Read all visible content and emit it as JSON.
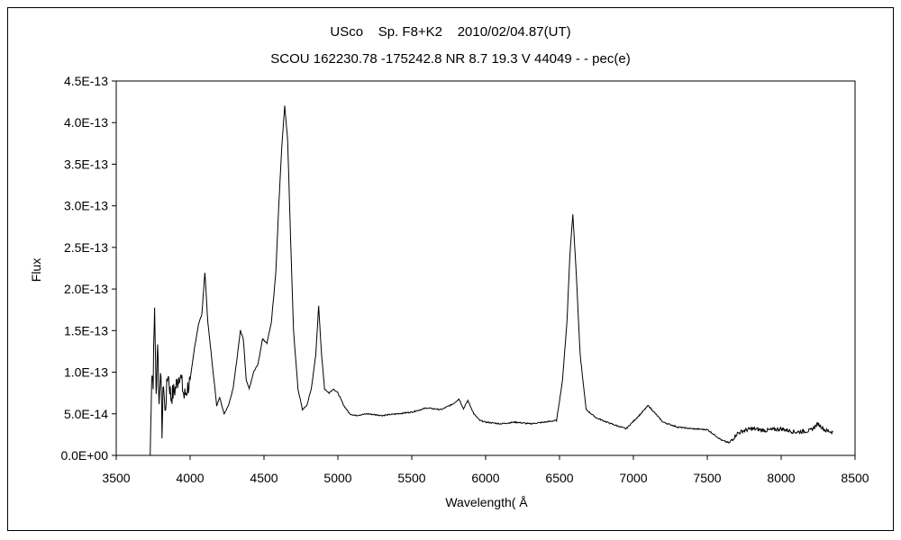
{
  "chart_data": {
    "type": "line",
    "title": "USco    Sp. F8+K2    2010/02/04.87(UT)",
    "subtitle": "SCOU 162230.78 -175242.8 NR 8.7 19.3 V 44049 - - pec(e)",
    "xlabel": "Wavelength( Å",
    "ylabel": "Flux",
    "xlim": [
      3500,
      8500
    ],
    "ylim": [
      0,
      4.5e-13
    ],
    "x_ticks": [
      "3500",
      "4000",
      "4500",
      "5000",
      "5500",
      "6000",
      "6500",
      "7000",
      "7500",
      "8000",
      "8500"
    ],
    "y_ticks": [
      "0.0E+00",
      "5.0E-14",
      "1.0E-13",
      "1.5E-13",
      "2.0E-13",
      "2.5E-13",
      "3.0E-13",
      "3.5E-13",
      "4.0E-13",
      "4.5E-13"
    ],
    "grid": false,
    "legend": "none",
    "series": [
      {
        "x": [
          3730,
          3740,
          3750,
          3760,
          3770,
          3780,
          3790,
          3800,
          3810,
          3820,
          3830,
          3850,
          3870,
          3900,
          3930,
          3960,
          4000,
          4030,
          4060,
          4080,
          4100,
          4120,
          4150,
          4180,
          4200,
          4230,
          4260,
          4290,
          4320,
          4340,
          4360,
          4380,
          4400,
          4430,
          4460,
          4490,
          4520,
          4550,
          4580,
          4600,
          4620,
          4640,
          4660,
          4680,
          4700,
          4730,
          4760,
          4790,
          4820,
          4850,
          4870,
          4890,
          4910,
          4940,
          4970,
          5000,
          5040,
          5080,
          5120,
          5200,
          5300,
          5400,
          5500,
          5600,
          5700,
          5780,
          5820,
          5850,
          5880,
          5920,
          5960,
          6000,
          6100,
          6200,
          6300,
          6400,
          6480,
          6520,
          6550,
          6570,
          6590,
          6610,
          6640,
          6680,
          6750,
          6850,
          6950,
          7050,
          7100,
          7150,
          7200,
          7300,
          7400,
          7500,
          7600,
          7650,
          7700,
          7750,
          7800,
          7900,
          8000,
          8100,
          8200,
          8250,
          8300,
          8350
        ],
        "y": [
          0.0,
          1e-13,
          9e-14,
          1.8e-13,
          7e-14,
          1.4e-13,
          6e-14,
          1.1e-13,
          3e-14,
          9e-14,
          5e-14,
          1e-13,
          7e-14,
          8e-14,
          1e-13,
          7e-14,
          9e-14,
          1.3e-13,
          1.6e-13,
          1.7e-13,
          2.2e-13,
          1.6e-13,
          1.1e-13,
          6e-14,
          7e-14,
          5e-14,
          6e-14,
          8e-14,
          1.2e-13,
          1.5e-13,
          1.4e-13,
          9e-14,
          8e-14,
          1e-13,
          1.1e-13,
          1.4e-13,
          1.35e-13,
          1.6e-13,
          2.2e-13,
          3e-13,
          3.7e-13,
          4.2e-13,
          3.8e-13,
          2.6e-13,
          1.5e-13,
          8e-14,
          5.5e-14,
          6e-14,
          8e-14,
          1.2e-13,
          1.8e-13,
          1.2e-13,
          8e-14,
          7.5e-14,
          8e-14,
          7.5e-14,
          6e-14,
          5e-14,
          4.8e-14,
          5e-14,
          4.8e-14,
          5e-14,
          5.2e-14,
          5.7e-14,
          5.5e-14,
          6.2e-14,
          6.8e-14,
          5.6e-14,
          6.6e-14,
          5e-14,
          4.2e-14,
          4e-14,
          3.8e-14,
          4e-14,
          3.8e-14,
          4e-14,
          4.2e-14,
          9e-14,
          1.6e-13,
          2.4e-13,
          2.9e-13,
          2.3e-13,
          1.2e-13,
          5.5e-14,
          4.5e-14,
          3.8e-14,
          3.2e-14,
          5e-14,
          6e-14,
          5e-14,
          4e-14,
          3.4e-14,
          3.2e-14,
          3.1e-14,
          1.8e-14,
          1.5e-14,
          2.6e-14,
          3e-14,
          3.2e-14,
          3e-14,
          3.2e-14,
          2.8e-14,
          3e-14,
          3.8e-14,
          3e-14,
          2.8e-14
        ]
      }
    ]
  }
}
